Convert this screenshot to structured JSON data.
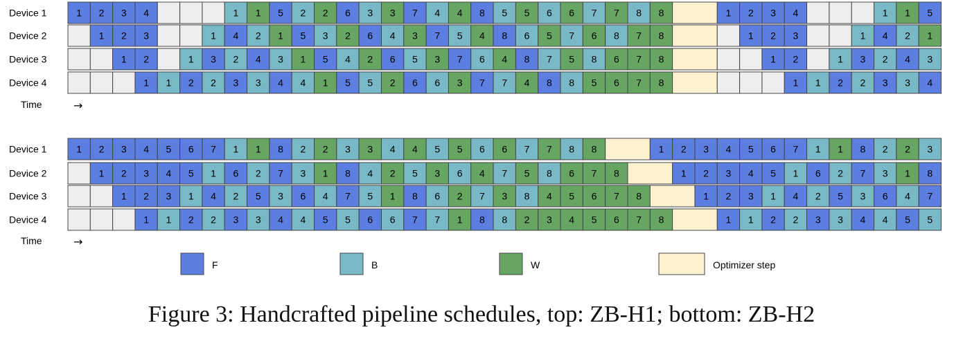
{
  "colors": {
    "F": "#5b7ee0",
    "B": "#79b8c6",
    "W": "#67a562",
    "O": "#fdf1cf",
    "empty": "#eeeeee",
    "border": "#444444",
    "text": "#000000"
  },
  "time_label": "Time",
  "time_arrow": "→",
  "legend": [
    {
      "type": "F",
      "label": "F"
    },
    {
      "type": "B",
      "label": "B"
    },
    {
      "type": "W",
      "label": "W"
    },
    {
      "type": "O",
      "label": "Optimizer step"
    }
  ],
  "schedules": [
    {
      "name": "ZB-H1",
      "rows": [
        {
          "label": "Device 1",
          "tokens": [
            "F1",
            "F2",
            "F3",
            "F4",
            "_",
            "_",
            "_",
            "B1",
            "W1",
            "F5",
            "B2",
            "W2",
            "F6",
            "B3",
            "W3",
            "F7",
            "B4",
            "W4",
            "F8",
            "B5",
            "W5",
            "B6",
            "W6",
            "B7",
            "W7",
            "B8",
            "W8",
            "O",
            "F1",
            "F2",
            "F3",
            "F4",
            "_",
            "_",
            "_",
            "B1",
            "W1",
            "F5"
          ]
        },
        {
          "label": "Device 2",
          "tokens": [
            "_",
            "F1",
            "F2",
            "F3",
            "_",
            "_",
            "B1",
            "F4",
            "B2",
            "W1",
            "F5",
            "B3",
            "W2",
            "F6",
            "B4",
            "W3",
            "F7",
            "B5",
            "W4",
            "F8",
            "B6",
            "W5",
            "B7",
            "W6",
            "B8",
            "W7",
            "W8",
            "O",
            "_",
            "F1",
            "F2",
            "F3",
            "_",
            "_",
            "B1",
            "F4",
            "B2",
            "W1"
          ]
        },
        {
          "label": "Device 3",
          "tokens": [
            "_",
            "_",
            "F1",
            "F2",
            "_",
            "B1",
            "F3",
            "B2",
            "F4",
            "B3",
            "W1",
            "F5",
            "B4",
            "W2",
            "F6",
            "B5",
            "W3",
            "F7",
            "B6",
            "W4",
            "F8",
            "B7",
            "W5",
            "B8",
            "W6",
            "W7",
            "W8",
            "O",
            "_",
            "_",
            "F1",
            "F2",
            "_",
            "B1",
            "F3",
            "B2",
            "F4",
            "B3"
          ]
        },
        {
          "label": "Device 4",
          "tokens": [
            "_",
            "_",
            "_",
            "F1",
            "B1",
            "F2",
            "B2",
            "F3",
            "B3",
            "F4",
            "B4",
            "W1",
            "F5",
            "B5",
            "W2",
            "F6",
            "B6",
            "W3",
            "F7",
            "B7",
            "W4",
            "F8",
            "B8",
            "W5",
            "W6",
            "W7",
            "W8",
            "O",
            "_",
            "_",
            "_",
            "F1",
            "B1",
            "F2",
            "B2",
            "F3",
            "B3",
            "F4"
          ]
        }
      ]
    },
    {
      "name": "ZB-H2",
      "rows": [
        {
          "label": "Device 1",
          "tokens": [
            "F1",
            "F2",
            "F3",
            "F4",
            "F5",
            "F6",
            "F7",
            "B1",
            "W1",
            "F8",
            "B2",
            "W2",
            "B3",
            "W3",
            "B4",
            "W4",
            "B5",
            "W5",
            "B6",
            "W6",
            "B7",
            "W7",
            "B8",
            "W8",
            "O",
            "F1",
            "F2",
            "F3",
            "F4",
            "F5",
            "F6",
            "F7",
            "B1",
            "W1",
            "F8",
            "B2",
            "W2",
            "B3"
          ]
        },
        {
          "label": "Device 2",
          "tokens": [
            "_",
            "F1",
            "F2",
            "F3",
            "F4",
            "F5",
            "B1",
            "F6",
            "B2",
            "F7",
            "B3",
            "W1",
            "F8",
            "B4",
            "W2",
            "B5",
            "W3",
            "B6",
            "W4",
            "B7",
            "W5",
            "B8",
            "W6",
            "W7",
            "W8",
            "O",
            "F1",
            "F2",
            "F3",
            "F4",
            "F5",
            "B1",
            "F6",
            "B2",
            "F7",
            "B3",
            "W1",
            "F8"
          ]
        },
        {
          "label": "Device 3",
          "tokens": [
            "_",
            "_",
            "F1",
            "F2",
            "F3",
            "B1",
            "F4",
            "B2",
            "F5",
            "B3",
            "F6",
            "B4",
            "F7",
            "B5",
            "W1",
            "F8",
            "B6",
            "W2",
            "B7",
            "W3",
            "B8",
            "W4",
            "W5",
            "W6",
            "W7",
            "W8",
            "O",
            "F1",
            "F2",
            "F3",
            "B1",
            "F4",
            "B2",
            "F5",
            "B3",
            "F6",
            "B4",
            "F7"
          ]
        },
        {
          "label": "Device 4",
          "tokens": [
            "_",
            "_",
            "_",
            "F1",
            "B1",
            "F2",
            "B2",
            "F3",
            "B3",
            "F4",
            "B4",
            "F5",
            "B5",
            "F6",
            "B6",
            "F7",
            "B7",
            "W1",
            "F8",
            "B8",
            "W2",
            "W3",
            "W4",
            "W5",
            "W6",
            "W7",
            "W8",
            "O",
            "F1",
            "B1",
            "F2",
            "B2",
            "F3",
            "B3",
            "F4",
            "B4",
            "F5",
            "B5"
          ]
        }
      ]
    }
  ],
  "caption": "Figure 3: Handcrafted pipeline schedules, top: ZB-H1; bottom: ZB-H2"
}
